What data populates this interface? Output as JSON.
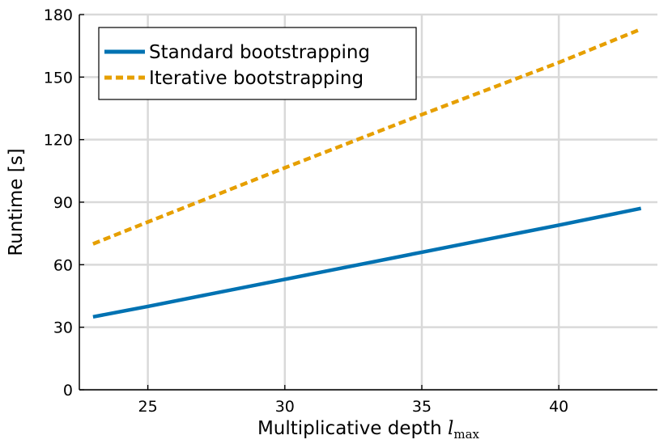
{
  "chart_data": {
    "type": "line",
    "xlabel": "Multiplicative depth ",
    "xlabel_math": "l",
    "xlabel_sub": "max",
    "ylabel": "Runtime [s]",
    "xlim": [
      22.5,
      43.6
    ],
    "ylim": [
      0,
      180
    ],
    "xticks": [
      25,
      30,
      35,
      40
    ],
    "yticks": [
      0,
      30,
      60,
      90,
      120,
      150,
      180
    ],
    "grid": true,
    "legend_position": "top-left",
    "series": [
      {
        "name": "Standard bootstrapping",
        "color": "#0072b2",
        "style": "solid",
        "x": [
          23,
          25,
          30,
          35,
          40,
          43
        ],
        "y": [
          35,
          40,
          53,
          66,
          79,
          87
        ]
      },
      {
        "name": "Iterative bootstrapping",
        "color": "#e69f00",
        "style": "dashed",
        "x": [
          23,
          25,
          30,
          35,
          40,
          43
        ],
        "y": [
          70,
          80.5,
          106.5,
          132,
          157,
          173
        ]
      }
    ]
  }
}
